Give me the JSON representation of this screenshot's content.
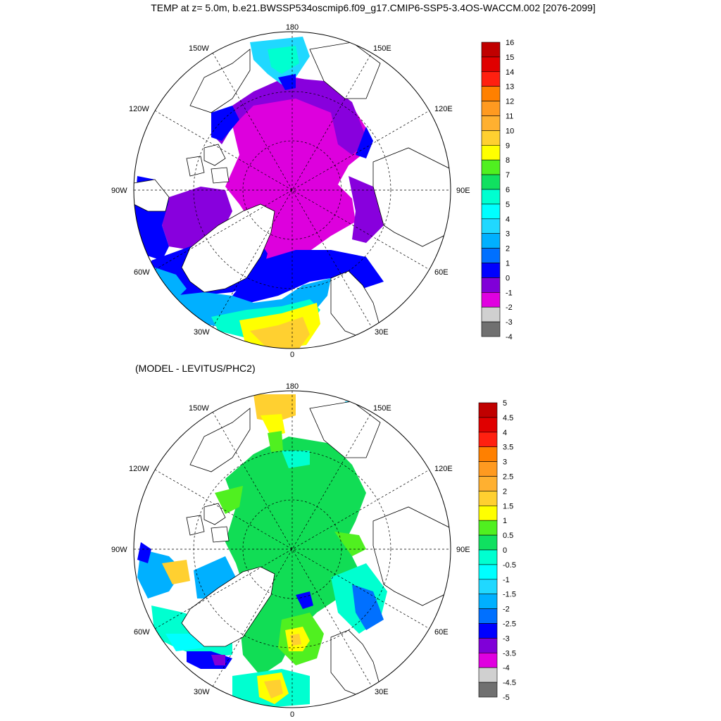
{
  "figure": {
    "title": "TEMP at z=   5.0m, b.e21.BWSSP534oscmip6.f09_g17.CMIP6-SSP5-3.4OS-WACCM.002 [2076-2099]",
    "subtitle": "(MODEL - LEVITUS/PHC2)"
  },
  "map_labels": {
    "top": "180",
    "bottom": "0",
    "left": "90W",
    "right": "90E",
    "upper_left": "150W",
    "upper_right": "150E",
    "mid_upper_left": "120W",
    "mid_upper_right": "120E",
    "mid_lower_left": "60W",
    "mid_lower_right": "60E",
    "lower_left": "30W",
    "lower_right": "30E"
  },
  "colors": {
    "ocean_panel1": "#dd00dd",
    "ocean_panel2": "#11dd55",
    "land": "#ffffff",
    "coast": "#000000"
  },
  "colorbar_top": {
    "labels": [
      "16",
      "15",
      "14",
      "13",
      "12",
      "11",
      "10",
      "9",
      "8",
      "7",
      "6",
      "5",
      "4",
      "3",
      "2",
      "1",
      "0",
      "-1",
      "-2",
      "-3",
      "-4"
    ],
    "colors": [
      "#c00000",
      "#e00000",
      "#ff2010",
      "#ff8000",
      "#ff9a20",
      "#ffb030",
      "#ffd030",
      "#ffff00",
      "#50f020",
      "#10e060",
      "#00ffd0",
      "#00ffff",
      "#20d8ff",
      "#00b0ff",
      "#0070ff",
      "#0000ff",
      "#8000d8",
      "#e000e0",
      "#d0d0d0",
      "#707070"
    ]
  },
  "colorbar_bottom": {
    "labels": [
      "5",
      "4.5",
      "4",
      "3.5",
      "3",
      "2.5",
      "2",
      "1.5",
      "1",
      "0.5",
      "0",
      "-0.5",
      "-1",
      "-1.5",
      "-2",
      "-2.5",
      "-3",
      "-3.5",
      "-4",
      "-4.5",
      "-5"
    ],
    "colors": [
      "#c00000",
      "#e00000",
      "#ff2010",
      "#ff8000",
      "#ff9a20",
      "#ffb030",
      "#ffd030",
      "#ffff00",
      "#50f020",
      "#10e060",
      "#00ffd0",
      "#00ffff",
      "#20d8ff",
      "#00b0ff",
      "#0070ff",
      "#0000ff",
      "#8000d8",
      "#e000e0",
      "#d0d0d0",
      "#707070"
    ]
  }
}
